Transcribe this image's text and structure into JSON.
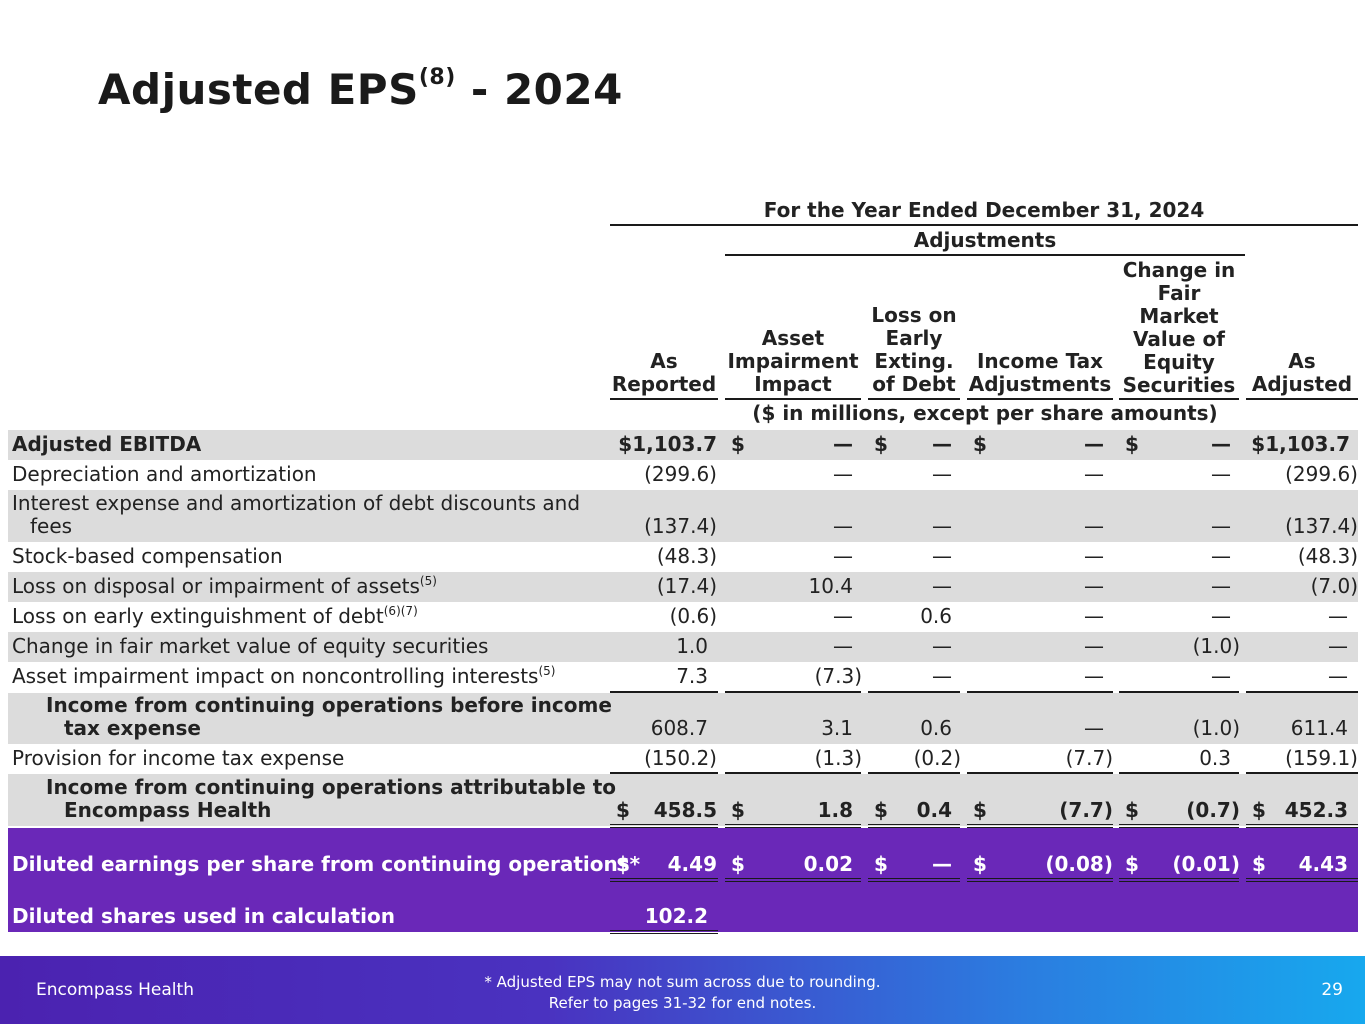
{
  "title": {
    "main": "Adjusted EPS",
    "sup": "(8)",
    "suffix": " - 2024"
  },
  "header": {
    "period": "For the Year Ended December 31, 2024",
    "adjustments": "Adjustments",
    "units": "($ in millions, except per share amounts)",
    "columns": [
      {
        "line1": "",
        "line2": "",
        "line3": "",
        "line4": "As",
        "line5": "Reported"
      },
      {
        "line1": "",
        "line2": "",
        "line3": "Asset",
        "line4": "Impairment",
        "line5": "Impact"
      },
      {
        "line1": "",
        "line2": "Loss on",
        "line3": "Early",
        "line4": "Exting.",
        "line5": "of Debt"
      },
      {
        "line1": "",
        "line2": "",
        "line3": "",
        "line4": "Income Tax",
        "line5": "Adjustments"
      },
      {
        "line0": "Change in",
        "line1": "Fair",
        "line2": "Market",
        "line3": "Value of",
        "line4": "Equity",
        "line5": "Securities"
      },
      {
        "line1": "",
        "line2": "",
        "line3": "",
        "line4": "As",
        "line5": "Adjusted"
      }
    ]
  },
  "rows": [
    {
      "label": "Adjusted EBITDA",
      "sup": "",
      "values": [
        "$1,103.7",
        "—",
        "—",
        "—",
        "—",
        "$1,103.7"
      ],
      "dollars": [
        "$",
        "$",
        "$",
        "$"
      ]
    },
    {
      "label": "Depreciation and amortization",
      "sup": "",
      "values": [
        "(299.6)",
        "—",
        "—",
        "—",
        "—",
        "(299.6)"
      ]
    },
    {
      "label": "Interest expense and amortization of debt discounts and fees",
      "sup": "",
      "values": [
        "(137.4)",
        "—",
        "—",
        "—",
        "—",
        "(137.4)"
      ]
    },
    {
      "label": "Stock-based compensation",
      "sup": "",
      "values": [
        "(48.3)",
        "—",
        "—",
        "—",
        "—",
        "(48.3)"
      ]
    },
    {
      "label": "Loss on disposal or impairment of assets",
      "sup": "(5)",
      "values": [
        "(17.4)",
        "10.4",
        "—",
        "—",
        "—",
        "(7.0)"
      ]
    },
    {
      "label": "Loss on early extinguishment of debt",
      "sup": "(6)(7)",
      "values": [
        "(0.6)",
        "—",
        "0.6",
        "—",
        "—",
        "—"
      ]
    },
    {
      "label": "Change in fair market value of equity securities",
      "sup": "",
      "values": [
        "1.0",
        "—",
        "—",
        "—",
        "(1.0)",
        "—"
      ]
    },
    {
      "label": "Asset impairment impact on noncontrolling interests",
      "sup": "(5)",
      "values": [
        "7.3",
        "(7.3)",
        "—",
        "—",
        "—",
        "—"
      ]
    },
    {
      "label": "Income from continuing operations before income tax expense",
      "sup": "",
      "values": [
        "608.7",
        "3.1",
        "0.6",
        "—",
        "(1.0)",
        "611.4"
      ]
    },
    {
      "label": "Provision for income tax expense",
      "sup": "",
      "values": [
        "(150.2)",
        "(1.3)",
        "(0.2)",
        "(7.7)",
        "0.3",
        "(159.1)"
      ]
    },
    {
      "label": "Income from continuing operations attributable to Encompass Health",
      "sup": "",
      "values": [
        "458.5",
        "1.8",
        "0.4",
        "(7.7)",
        "(0.7)",
        "452.3"
      ],
      "dollars": [
        "$",
        "$",
        "$",
        "$",
        "$",
        "$"
      ]
    },
    {
      "label": "Diluted earnings per share from continuing operations*",
      "sup": "",
      "values": [
        "4.49",
        "0.02",
        "—",
        "(0.08)",
        "(0.01)",
        "4.43"
      ],
      "dollars": [
        "$",
        "$",
        "$",
        "$",
        "$",
        "$"
      ]
    },
    {
      "label": "Diluted shares used in calculation",
      "sup": "",
      "values": [
        "102.2"
      ]
    }
  ],
  "footer": {
    "brand": "Encompass Health",
    "note_line1": "*  Adjusted EPS may not sum across due to rounding.",
    "note_line2": "Refer to pages 31-32 for end notes.",
    "page": "29"
  },
  "colors": {
    "purple": "#6a28b8",
    "shade": "#dcdcdc"
  }
}
